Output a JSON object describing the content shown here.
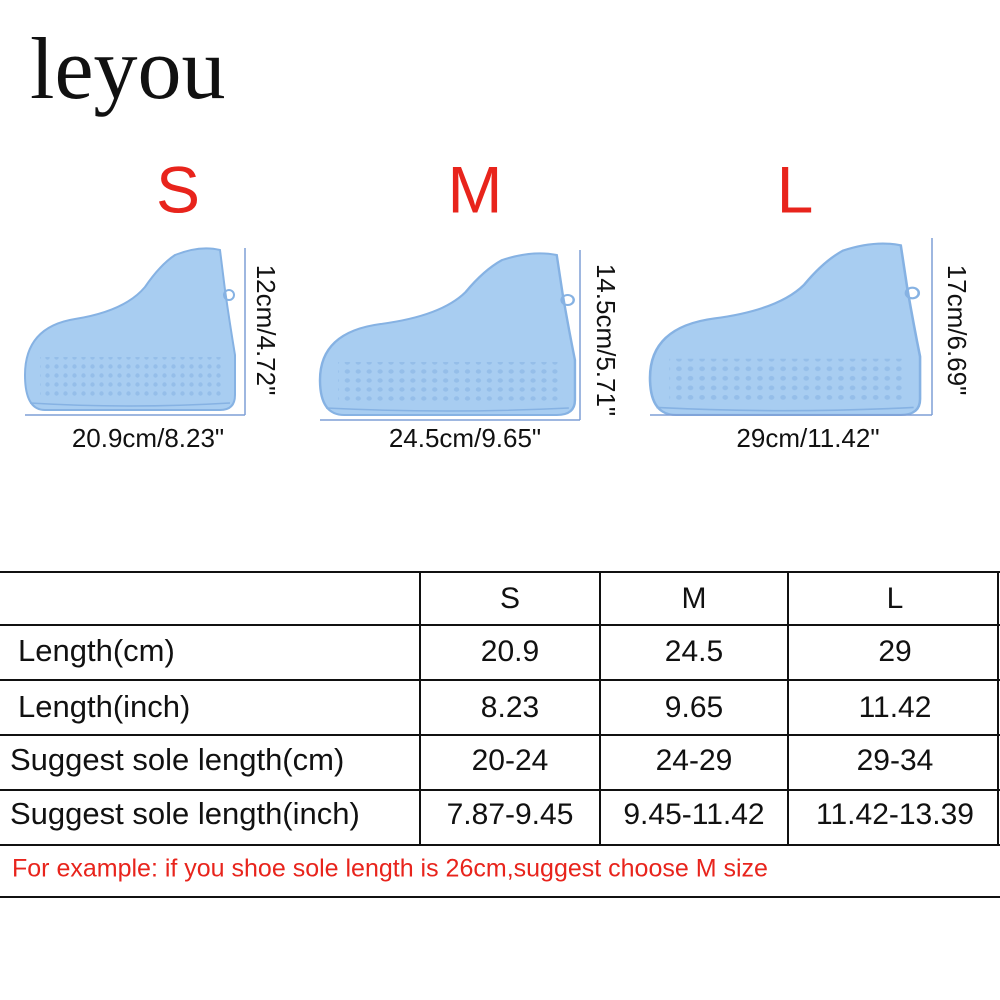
{
  "brand": "leyou",
  "shoes": [
    {
      "size": "S",
      "width": "20.9cm/8.23\"",
      "height": "12cm/4.72\""
    },
    {
      "size": "M",
      "width": "24.5cm/9.65\"",
      "height": "14.5cm/5.71\""
    },
    {
      "size": "L",
      "width": "29cm/11.42\"",
      "height": "17cm/6.69\""
    }
  ],
  "table": {
    "header": [
      "S",
      "M",
      "L"
    ],
    "rows": [
      [
        "Length(cm)",
        "20.9",
        "24.5",
        "29"
      ],
      [
        "Length(inch)",
        "8.23",
        "9.65",
        "11.42"
      ],
      [
        "Suggest sole length(cm)",
        "20-24",
        "24-29",
        "29-34"
      ],
      [
        "Suggest sole length(inch)",
        "7.87-9.45",
        "9.45-11.42",
        "11.42-13.39"
      ]
    ],
    "note": "For example: if you shoe sole length is 26cm,suggest choose M size"
  }
}
